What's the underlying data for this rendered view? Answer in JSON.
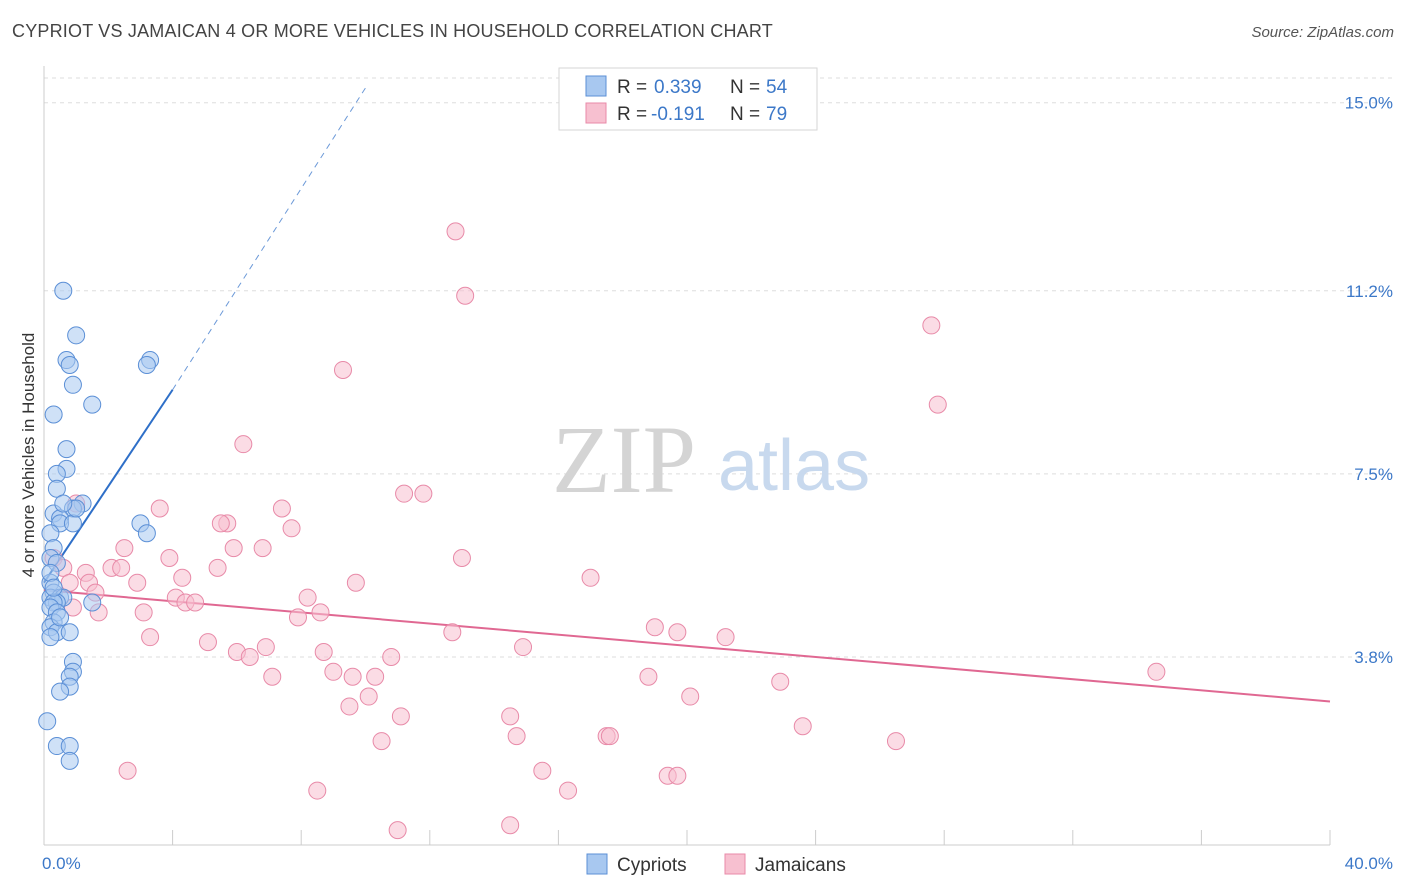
{
  "title": "CYPRIOT VS JAMAICAN 4 OR MORE VEHICLES IN HOUSEHOLD CORRELATION CHART",
  "source": "Source: ZipAtlas.com",
  "watermark": {
    "zip": "ZIP",
    "atlas": "atlas"
  },
  "legend": {
    "r_label": "R =",
    "n_label": "N =",
    "cypriots": {
      "r": "0.339",
      "n": "54"
    },
    "jamaicans": {
      "r": "-0.191",
      "n": "79"
    }
  },
  "colors": {
    "cypriots_fill": "#a8c8f0",
    "cypriots_stroke": "#5b8fd6",
    "cypriots_line": "#2e6fc8",
    "jamaicans_fill": "#f7c0d0",
    "jamaicans_stroke": "#e88aa8",
    "jamaicans_line": "#e06892",
    "tick_text": "#3c78c8"
  },
  "chart_data": {
    "type": "scatter",
    "title": "CYPRIOT VS JAMAICAN 4 OR MORE VEHICLES IN HOUSEHOLD CORRELATION CHART",
    "xlabel": "",
    "ylabel": "4 or more Vehicles in Household",
    "xlim": [
      0,
      40
    ],
    "ylim": [
      0,
      15.5
    ],
    "x_tick_labels": [
      "0.0%",
      "40.0%"
    ],
    "y_ticks": [
      3.8,
      7.5,
      11.2,
      15.0
    ],
    "y_tick_labels": [
      "3.8%",
      "7.5%",
      "11.2%",
      "15.0%"
    ],
    "grid": "horizontal dashed",
    "legend_position": "top-center",
    "series": [
      {
        "name": "Cypriots",
        "points": [
          [
            0.6,
            11.2
          ],
          [
            1.0,
            10.3
          ],
          [
            0.7,
            9.8
          ],
          [
            0.8,
            9.7
          ],
          [
            0.9,
            9.3
          ],
          [
            1.5,
            8.9
          ],
          [
            0.3,
            8.7
          ],
          [
            3.3,
            9.8
          ],
          [
            3.2,
            9.7
          ],
          [
            0.7,
            8.0
          ],
          [
            0.7,
            7.6
          ],
          [
            0.4,
            7.5
          ],
          [
            0.4,
            7.2
          ],
          [
            1.2,
            6.9
          ],
          [
            0.9,
            6.8
          ],
          [
            0.3,
            6.7
          ],
          [
            0.5,
            6.6
          ],
          [
            0.5,
            6.5
          ],
          [
            0.9,
            6.5
          ],
          [
            3.0,
            6.5
          ],
          [
            3.2,
            6.3
          ],
          [
            0.2,
            6.3
          ],
          [
            0.3,
            6.0
          ],
          [
            0.2,
            5.8
          ],
          [
            0.4,
            5.7
          ],
          [
            0.2,
            5.3
          ],
          [
            0.3,
            5.1
          ],
          [
            0.2,
            5.0
          ],
          [
            0.5,
            5.0
          ],
          [
            0.6,
            5.0
          ],
          [
            0.4,
            4.9
          ],
          [
            0.3,
            4.9
          ],
          [
            1.5,
            4.9
          ],
          [
            0.2,
            4.8
          ],
          [
            0.4,
            4.7
          ],
          [
            0.3,
            4.5
          ],
          [
            0.2,
            4.4
          ],
          [
            0.4,
            4.3
          ],
          [
            0.8,
            4.3
          ],
          [
            0.2,
            4.2
          ],
          [
            0.9,
            3.7
          ],
          [
            0.9,
            3.5
          ],
          [
            0.8,
            3.4
          ],
          [
            0.8,
            3.2
          ],
          [
            0.5,
            3.1
          ],
          [
            0.1,
            2.5
          ],
          [
            0.4,
            2.0
          ],
          [
            0.8,
            2.0
          ],
          [
            0.8,
            1.7
          ],
          [
            0.2,
            5.5
          ],
          [
            0.3,
            5.2
          ],
          [
            0.5,
            4.6
          ],
          [
            1.0,
            6.8
          ],
          [
            0.6,
            6.9
          ]
        ],
        "trend": {
          "x1": 0.0,
          "y1": 5.3,
          "x2": 4.0,
          "y2": 9.2,
          "dashed_to": [
            10.0,
            15.3
          ]
        }
      },
      {
        "name": "Jamaicans",
        "points": [
          [
            12.8,
            12.4
          ],
          [
            13.1,
            11.1
          ],
          [
            27.6,
            10.5
          ],
          [
            9.3,
            9.6
          ],
          [
            27.8,
            8.9
          ],
          [
            6.2,
            8.1
          ],
          [
            11.2,
            7.1
          ],
          [
            11.8,
            7.1
          ],
          [
            1.0,
            6.9
          ],
          [
            3.6,
            6.8
          ],
          [
            7.4,
            6.8
          ],
          [
            5.7,
            6.5
          ],
          [
            5.5,
            6.5
          ],
          [
            7.7,
            6.4
          ],
          [
            0.3,
            5.8
          ],
          [
            2.5,
            6.0
          ],
          [
            5.9,
            6.0
          ],
          [
            6.8,
            6.0
          ],
          [
            13.0,
            5.8
          ],
          [
            3.9,
            5.8
          ],
          [
            0.6,
            5.6
          ],
          [
            1.3,
            5.5
          ],
          [
            2.1,
            5.6
          ],
          [
            2.4,
            5.6
          ],
          [
            5.4,
            5.6
          ],
          [
            17.0,
            5.4
          ],
          [
            9.7,
            5.3
          ],
          [
            0.8,
            5.3
          ],
          [
            1.4,
            5.3
          ],
          [
            2.9,
            5.3
          ],
          [
            4.3,
            5.4
          ],
          [
            1.6,
            5.1
          ],
          [
            4.1,
            5.0
          ],
          [
            4.4,
            4.9
          ],
          [
            4.7,
            4.9
          ],
          [
            8.2,
            5.0
          ],
          [
            0.9,
            4.8
          ],
          [
            1.7,
            4.7
          ],
          [
            3.1,
            4.7
          ],
          [
            8.6,
            4.7
          ],
          [
            7.9,
            4.6
          ],
          [
            19.0,
            4.4
          ],
          [
            19.7,
            4.3
          ],
          [
            21.2,
            4.2
          ],
          [
            12.7,
            4.3
          ],
          [
            3.3,
            4.2
          ],
          [
            5.1,
            4.1
          ],
          [
            6.0,
            3.9
          ],
          [
            6.9,
            4.0
          ],
          [
            8.7,
            3.9
          ],
          [
            10.8,
            3.8
          ],
          [
            14.9,
            4.0
          ],
          [
            6.4,
            3.8
          ],
          [
            9.0,
            3.5
          ],
          [
            9.6,
            3.4
          ],
          [
            10.3,
            3.4
          ],
          [
            7.1,
            3.4
          ],
          [
            18.8,
            3.4
          ],
          [
            22.9,
            3.3
          ],
          [
            34.6,
            3.5
          ],
          [
            10.1,
            3.0
          ],
          [
            9.5,
            2.8
          ],
          [
            20.1,
            3.0
          ],
          [
            11.1,
            2.6
          ],
          [
            14.5,
            2.6
          ],
          [
            23.6,
            2.4
          ],
          [
            14.7,
            2.2
          ],
          [
            10.5,
            2.1
          ],
          [
            17.5,
            2.2
          ],
          [
            17.6,
            2.2
          ],
          [
            26.5,
            2.1
          ],
          [
            2.6,
            1.5
          ],
          [
            15.5,
            1.5
          ],
          [
            19.4,
            1.4
          ],
          [
            19.7,
            1.4
          ],
          [
            8.5,
            1.1
          ],
          [
            16.3,
            1.1
          ],
          [
            11.0,
            0.3
          ],
          [
            14.5,
            0.4
          ]
        ],
        "trend": {
          "x1": 0.0,
          "y1": 5.15,
          "x2": 40.0,
          "y2": 2.9
        }
      }
    ]
  }
}
